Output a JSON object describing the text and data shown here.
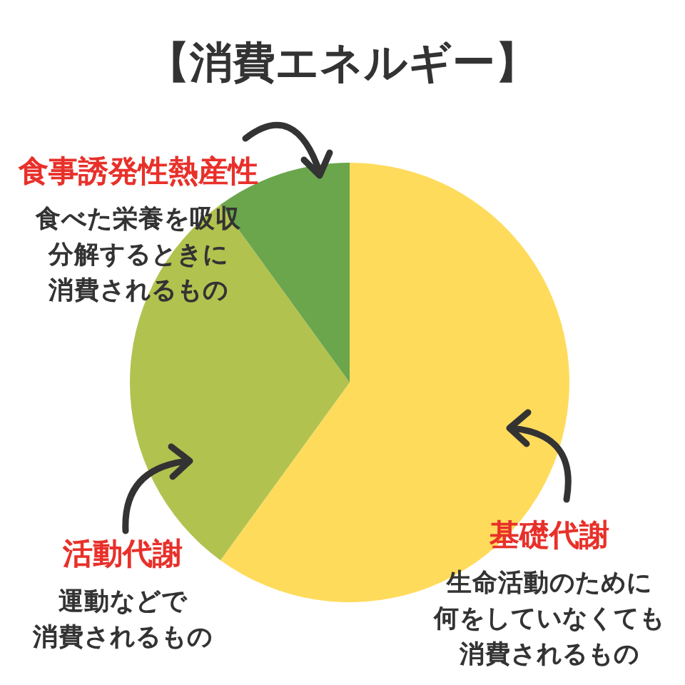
{
  "chart_data": {
    "type": "pie",
    "title": "【消費エネルギー】",
    "categories": [
      "基礎代謝",
      "活動代謝",
      "食事誘発性熱産性"
    ],
    "values": [
      60,
      30,
      10
    ],
    "colors": [
      "#ffdb5c",
      "#b2c24f",
      "#6ba54c"
    ],
    "annotations": [
      "生命活動のために何をしていなくても消費されるもの",
      "運動などで消費されるもの",
      "食べた栄養を吸収分解するときに消費されるもの"
    ]
  }
}
